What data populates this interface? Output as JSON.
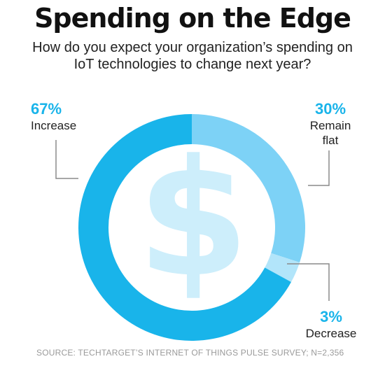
{
  "title": "Spending on the Edge",
  "subtitle": "How do you expect your organization’s spending on IoT technologies to change next year?",
  "source": "SOURCE: TECHTARGET’S INTERNET OF THINGS PULSE SURVEY; N=2,356",
  "center_icon": "dollar-sign-icon",
  "colors": {
    "increase": "#19b4ea",
    "flat": "#7dd2f6",
    "decrease": "#b2e5fa",
    "icon": "#cdeefb",
    "pct_text": "#19b4ea",
    "leader": "#8a8a8a"
  },
  "chart_data": {
    "type": "pie",
    "variant": "donut",
    "title": "Spending on the Edge",
    "slices": [
      {
        "key": "increase",
        "label": "Increase",
        "value": 67,
        "value_label": "67%"
      },
      {
        "key": "decrease",
        "label": "Decrease",
        "value": 3,
        "value_label": "3%"
      },
      {
        "key": "flat",
        "label": "Remain flat",
        "value": 30,
        "value_label": "30%"
      }
    ]
  }
}
